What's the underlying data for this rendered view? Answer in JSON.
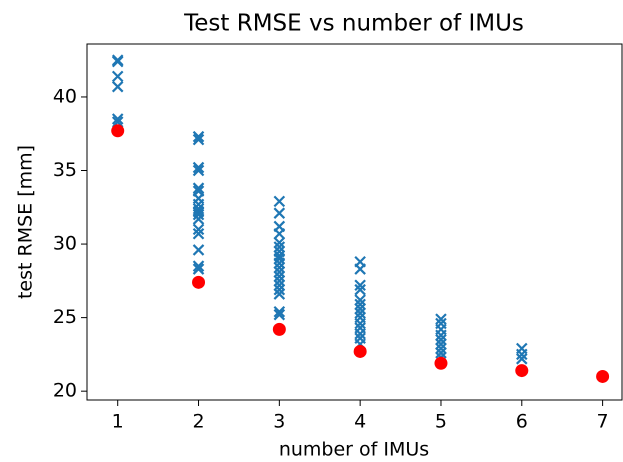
{
  "chart_data": {
    "type": "scatter",
    "title": "Test RMSE vs number of IMUs",
    "xlabel": "number of IMUs",
    "ylabel": "test RMSE [mm]",
    "xlim": [
      0.62,
      7.24
    ],
    "ylim": [
      19.4,
      43.6
    ],
    "xticks": [
      1,
      2,
      3,
      4,
      5,
      6,
      7
    ],
    "yticks": [
      20,
      25,
      30,
      35,
      40
    ],
    "series": [
      {
        "color": "#1f77b4",
        "marker": "x",
        "x": [
          1,
          1,
          1,
          1,
          1,
          1,
          2,
          2,
          2,
          2,
          2,
          2,
          2,
          2,
          2,
          2,
          2,
          2,
          2,
          2,
          2,
          2,
          2,
          3,
          3,
          3,
          3,
          3,
          3,
          3,
          3,
          3,
          3,
          3,
          3,
          3,
          3,
          3,
          3,
          3,
          3,
          3,
          4,
          4,
          4,
          4,
          4,
          4,
          4,
          4,
          4,
          4,
          4,
          4,
          4,
          4,
          5,
          5,
          5,
          5,
          5,
          5,
          5,
          5,
          5,
          6,
          6,
          6
        ],
        "values": [
          42.5,
          42.4,
          41.4,
          40.7,
          38.5,
          38.3,
          37.3,
          37.1,
          35.2,
          35.0,
          33.8,
          33.6,
          33.1,
          32.7,
          32.4,
          32.2,
          32.0,
          31.7,
          31.0,
          30.7,
          29.6,
          28.5,
          28.3,
          32.9,
          32.1,
          31.2,
          30.7,
          30.1,
          29.8,
          29.5,
          29.2,
          29.0,
          28.7,
          28.4,
          28.1,
          27.8,
          27.5,
          27.2,
          26.9,
          26.6,
          25.4,
          25.2,
          28.8,
          28.3,
          27.2,
          26.9,
          26.2,
          25.9,
          25.6,
          25.3,
          25.0,
          24.6,
          24.3,
          23.9,
          23.6,
          23.2,
          24.9,
          24.6,
          24.2,
          23.8,
          23.5,
          23.2,
          22.9,
          22.6,
          22.3,
          22.9,
          22.5,
          22.2
        ]
      },
      {
        "color": "#ff0000",
        "marker": "o",
        "x": [
          1,
          2,
          3,
          4,
          5,
          6,
          7
        ],
        "values": [
          37.7,
          27.4,
          24.2,
          22.7,
          21.9,
          21.4,
          21.0
        ]
      }
    ]
  }
}
